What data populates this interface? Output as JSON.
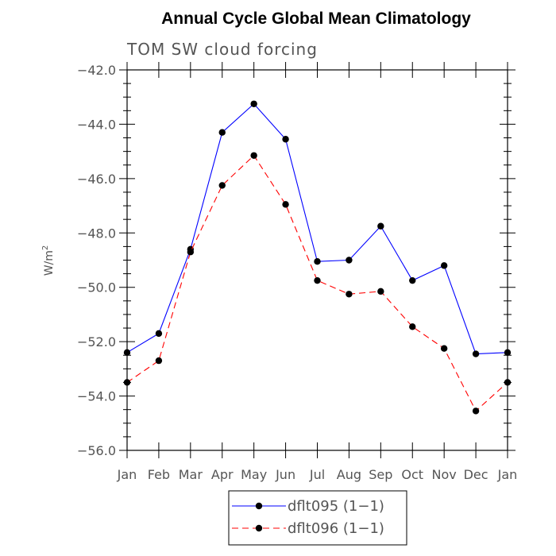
{
  "chart_data": {
    "type": "line",
    "title": "Annual Cycle Global Mean Climatology",
    "subtitle": "TOM SW cloud forcing",
    "ylabel": "W/m",
    "ylabel_sup": "2",
    "ylim": [
      -56.0,
      -42.0
    ],
    "yticks": [
      -42.0,
      -44.0,
      -46.0,
      -48.0,
      -50.0,
      -52.0,
      -54.0,
      -56.0
    ],
    "ytick_labels": [
      "−42.0",
      "−44.0",
      "−46.0",
      "−48.0",
      "−50.0",
      "−52.0",
      "−54.0",
      "−56.0"
    ],
    "categories": [
      "Jan",
      "Feb",
      "Mar",
      "Apr",
      "May",
      "Jun",
      "Jul",
      "Aug",
      "Sep",
      "Oct",
      "Nov",
      "Dec",
      "Jan"
    ],
    "grid": false,
    "legend_position": "bottom",
    "series": [
      {
        "name": "dflt095 (1−1)",
        "color": "#0000ff",
        "dash": "solid",
        "values": [
          -52.4,
          -51.7,
          -48.6,
          -44.3,
          -43.25,
          -44.55,
          -49.05,
          -49.0,
          -47.75,
          -49.75,
          -49.2,
          -52.45,
          -52.4
        ]
      },
      {
        "name": "dflt096 (1−1)",
        "color": "#ff0000",
        "dash": "dashed",
        "values": [
          -53.5,
          -52.7,
          -48.7,
          -46.25,
          -45.15,
          -46.95,
          -49.75,
          -50.25,
          -50.15,
          -51.45,
          -52.25,
          -54.55,
          -53.5
        ]
      }
    ]
  }
}
